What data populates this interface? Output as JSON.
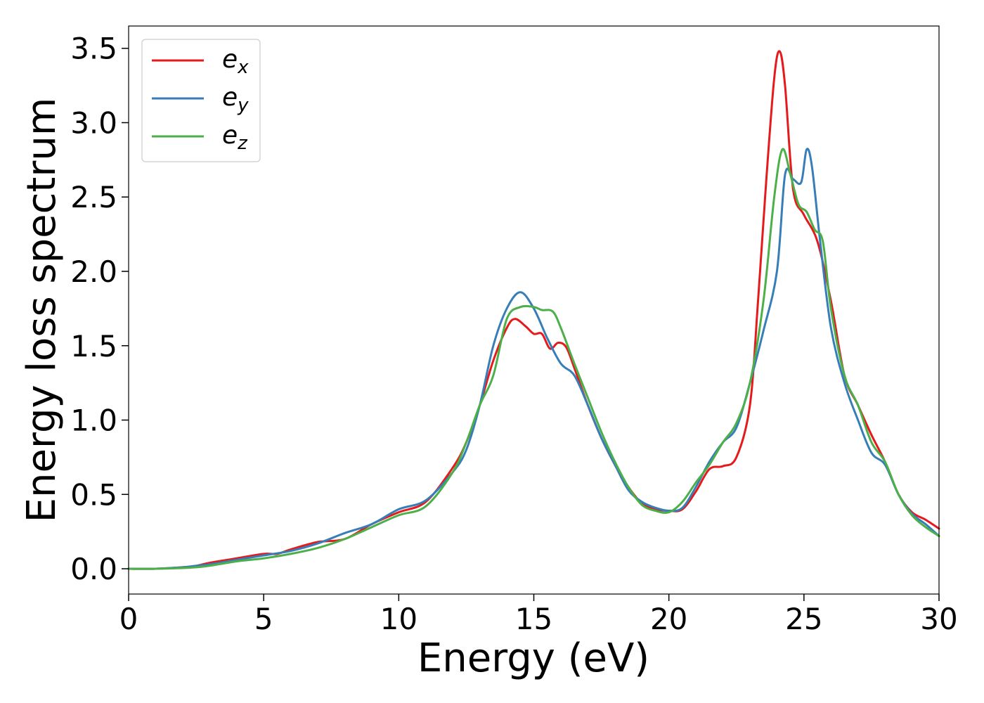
{
  "chart_data": {
    "type": "line",
    "title": "",
    "xlabel": "Energy (eV)",
    "ylabel": "Energy loss spectrum",
    "xlim": [
      0,
      30
    ],
    "ylim": [
      -0.17,
      3.65
    ],
    "xticks": [
      0,
      5,
      10,
      15,
      20,
      25,
      30
    ],
    "xtick_labels": [
      "0",
      "5",
      "10",
      "15",
      "20",
      "25",
      "30"
    ],
    "yticks": [
      0.0,
      0.5,
      1.0,
      1.5,
      2.0,
      2.5,
      3.0,
      3.5
    ],
    "ytick_labels": [
      "0.0",
      "0.5",
      "1.0",
      "1.5",
      "2.0",
      "2.5",
      "3.0",
      "3.5"
    ],
    "grid": false,
    "legend_position": "top-left",
    "series": [
      {
        "name": "e_x",
        "legend_base": "e",
        "legend_sub": "x",
        "color": "#e41a1c",
        "x": [
          0,
          1,
          2,
          2.5,
          3,
          4,
          5,
          5.5,
          6,
          7,
          8,
          9,
          10,
          11,
          12,
          12.5,
          13,
          13.5,
          14,
          14.3,
          14.7,
          15,
          15.3,
          15.6,
          15.9,
          16.2,
          16.5,
          17,
          17.5,
          18,
          18.5,
          19,
          19.5,
          20,
          20.5,
          21,
          21.5,
          22,
          22.5,
          23,
          23.3,
          23.6,
          23.9,
          24.1,
          24.3,
          24.6,
          25,
          25.5,
          26,
          26.5,
          27,
          27.5,
          28,
          28.5,
          29,
          29.5,
          30
        ],
        "y": [
          0,
          0,
          0.01,
          0.02,
          0.04,
          0.07,
          0.1,
          0.1,
          0.13,
          0.18,
          0.2,
          0.3,
          0.38,
          0.45,
          0.68,
          0.85,
          1.1,
          1.4,
          1.62,
          1.68,
          1.63,
          1.58,
          1.58,
          1.48,
          1.52,
          1.49,
          1.35,
          1.1,
          0.88,
          0.7,
          0.55,
          0.44,
          0.4,
          0.39,
          0.4,
          0.52,
          0.67,
          0.69,
          0.75,
          1.1,
          1.8,
          2.6,
          3.3,
          3.48,
          3.25,
          2.55,
          2.38,
          2.2,
          1.8,
          1.3,
          1.1,
          0.9,
          0.72,
          0.5,
          0.38,
          0.33,
          0.27
        ]
      },
      {
        "name": "e_y",
        "legend_base": "e",
        "legend_sub": "y",
        "color": "#377eb8",
        "x": [
          0,
          1,
          2,
          2.5,
          3,
          4,
          5,
          6,
          7,
          8,
          9,
          10,
          11,
          12,
          12.5,
          13,
          13.5,
          14,
          14.5,
          15,
          15.5,
          16,
          16.5,
          17,
          17.5,
          18,
          18.5,
          19,
          19.5,
          20,
          20.5,
          21,
          21.5,
          22,
          22.5,
          23,
          23.5,
          24,
          24.3,
          24.6,
          24.9,
          25.1,
          25.3,
          25.6,
          26,
          26.5,
          27,
          27.5,
          28,
          28.5,
          29,
          29.5,
          30
        ],
        "y": [
          0,
          0,
          0.01,
          0.02,
          0.03,
          0.06,
          0.09,
          0.12,
          0.17,
          0.24,
          0.3,
          0.4,
          0.46,
          0.65,
          0.8,
          1.1,
          1.5,
          1.75,
          1.86,
          1.75,
          1.55,
          1.38,
          1.3,
          1.1,
          0.88,
          0.7,
          0.53,
          0.45,
          0.41,
          0.39,
          0.41,
          0.55,
          0.72,
          0.85,
          0.95,
          1.25,
          1.6,
          2.0,
          2.65,
          2.62,
          2.6,
          2.82,
          2.7,
          2.2,
          1.62,
          1.25,
          1.0,
          0.78,
          0.7,
          0.5,
          0.37,
          0.3,
          0.22
        ]
      },
      {
        "name": "e_z",
        "legend_base": "e",
        "legend_sub": "z",
        "color": "#4daf4a",
        "x": [
          0,
          1,
          2,
          2.5,
          3,
          4,
          5,
          6,
          7,
          8,
          9,
          10,
          11,
          12,
          12.5,
          13,
          13.5,
          14,
          14.5,
          15,
          15.3,
          15.7,
          16,
          16.5,
          17,
          17.5,
          18,
          18.5,
          19,
          19.5,
          20,
          20.5,
          21,
          21.5,
          22,
          22.5,
          23,
          23.5,
          23.9,
          24.2,
          24.5,
          24.8,
          25.1,
          25.4,
          25.7,
          26,
          26.5,
          27,
          27.5,
          28,
          28.5,
          29,
          29.5,
          30
        ],
        "y": [
          0,
          0,
          0.005,
          0.01,
          0.02,
          0.05,
          0.07,
          0.1,
          0.14,
          0.2,
          0.28,
          0.36,
          0.42,
          0.65,
          0.85,
          1.1,
          1.3,
          1.68,
          1.76,
          1.76,
          1.74,
          1.73,
          1.62,
          1.38,
          1.15,
          0.92,
          0.72,
          0.55,
          0.43,
          0.39,
          0.38,
          0.45,
          0.58,
          0.7,
          0.85,
          0.98,
          1.25,
          1.8,
          2.5,
          2.82,
          2.65,
          2.45,
          2.4,
          2.28,
          2.2,
          1.75,
          1.3,
          1.1,
          0.85,
          0.72,
          0.5,
          0.36,
          0.28,
          0.22
        ]
      }
    ]
  }
}
